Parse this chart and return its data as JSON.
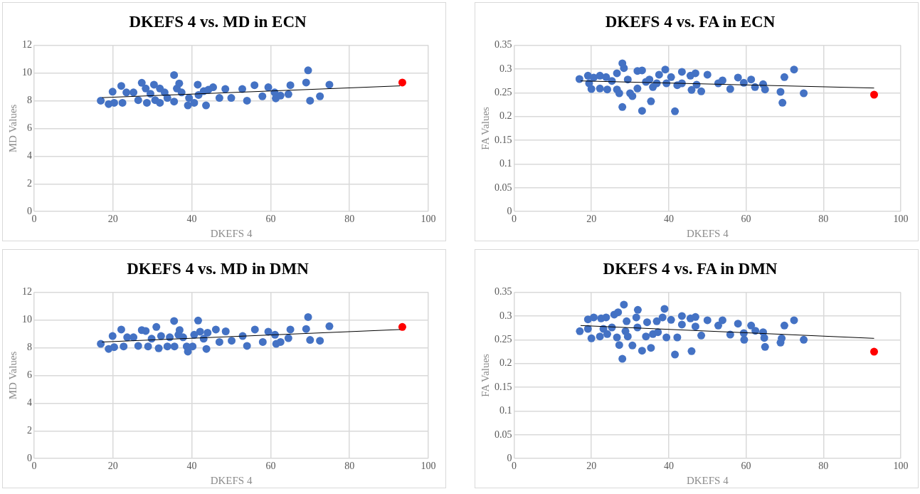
{
  "chart_data": [
    {
      "type": "scatter",
      "title": "DKEFS 4 vs. MD in ECN",
      "xlabel": "DKEFS 4",
      "ylabel": "MD Values",
      "xlim": [
        0,
        100
      ],
      "xticks": [
        0,
        20,
        40,
        60,
        80,
        100
      ],
      "ylim": [
        0,
        12
      ],
      "yticks": [
        0,
        2,
        4,
        6,
        8,
        10,
        12
      ],
      "grid": true,
      "legend": false,
      "marker": "circle",
      "series": [
        {
          "color": "#4472c4",
          "x": [
            16.9,
            18.9,
            20.3,
            19.9,
            22.1,
            22.4,
            23.4,
            25.2,
            26.4,
            27.3,
            28.3,
            28.6,
            29.5,
            30.4,
            30.7,
            31.9,
            31.9,
            33.1,
            33.8,
            35.5,
            35.5,
            36.2,
            36.8,
            37.4,
            39.0,
            39.3,
            40.6,
            41.5,
            41.7,
            43.6,
            43.0,
            44.2,
            45.4,
            47.0,
            48.5,
            50.0,
            52.8,
            54.0,
            55.9,
            57.9,
            59.4,
            61.0,
            61.3,
            62.5,
            64.5,
            65.0,
            69.0,
            69.5,
            70.0,
            72.5,
            74.9
          ],
          "values": [
            8.0,
            7.76,
            7.85,
            8.65,
            9.07,
            7.85,
            8.6,
            8.6,
            8.04,
            9.29,
            8.88,
            7.85,
            8.5,
            9.16,
            8.04,
            8.88,
            7.85,
            8.6,
            8.2,
            9.85,
            7.94,
            8.88,
            9.25,
            8.6,
            7.66,
            8.2,
            7.85,
            9.16,
            8.41,
            7.66,
            8.69,
            8.79,
            8.97,
            8.2,
            8.84,
            8.2,
            8.84,
            8.0,
            9.12,
            8.32,
            8.97,
            8.6,
            8.17,
            8.37,
            8.47,
            9.12,
            9.31,
            10.19,
            8.0,
            8.32,
            9.16
          ]
        },
        {
          "color": "#ff0000",
          "x": [
            93.4
          ],
          "values": [
            9.31
          ]
        },
        {
          "type": "line",
          "color": "#000000",
          "marker": "none",
          "x": [
            17.2,
            92.8
          ],
          "values": [
            8.22,
            9.07
          ]
        }
      ]
    },
    {
      "type": "scatter",
      "title": "DKEFS 4 vs. FA in ECN",
      "xlabel": "DKEFS 4",
      "ylabel": "FA Values",
      "xlim": [
        0,
        100
      ],
      "xticks": [
        0,
        20,
        40,
        60,
        80,
        100
      ],
      "ylim": [
        0,
        0.35
      ],
      "yticks": [
        0,
        0.05,
        0.1,
        0.15,
        0.2,
        0.25,
        0.3,
        0.35
      ],
      "grid": true,
      "legend": false,
      "marker": "circle",
      "series": [
        {
          "color": "#4472c4",
          "x": [
            16.9,
            19.1,
            19.4,
            20.0,
            20.6,
            22.2,
            22.2,
            23.8,
            24.1,
            25.3,
            26.6,
            26.6,
            27.2,
            28.0,
            28.4,
            28.0,
            29.4,
            30.0,
            30.6,
            31.9,
            33.1,
            31.9,
            33.1,
            34.1,
            35.0,
            35.4,
            35.9,
            36.9,
            37.5,
            39.1,
            39.4,
            40.6,
            41.6,
            42.2,
            43.4,
            43.4,
            45.6,
            45.9,
            46.9,
            47.2,
            48.4,
            50.0,
            52.8,
            53.9,
            55.9,
            57.9,
            59.4,
            61.3,
            62.3,
            64.4,
            64.9,
            68.9,
            69.4,
            69.9,
            72.4,
            74.9
          ],
          "values": [
            0.279,
            0.286,
            0.27,
            0.258,
            0.282,
            0.286,
            0.259,
            0.283,
            0.257,
            0.275,
            0.257,
            0.291,
            0.249,
            0.312,
            0.302,
            0.22,
            0.278,
            0.249,
            0.243,
            0.296,
            0.297,
            0.259,
            0.212,
            0.273,
            0.278,
            0.232,
            0.262,
            0.27,
            0.288,
            0.299,
            0.27,
            0.283,
            0.211,
            0.266,
            0.294,
            0.27,
            0.286,
            0.256,
            0.291,
            0.267,
            0.253,
            0.288,
            0.27,
            0.276,
            0.258,
            0.282,
            0.271,
            0.278,
            0.262,
            0.268,
            0.257,
            0.252,
            0.229,
            0.283,
            0.299,
            0.249
          ]
        },
        {
          "color": "#ff0000",
          "x": [
            93.1
          ],
          "values": [
            0.246
          ]
        },
        {
          "type": "line",
          "color": "#000000",
          "marker": "none",
          "x": [
            17.2,
            93.1
          ],
          "values": [
            0.275,
            0.26
          ]
        }
      ]
    },
    {
      "type": "scatter",
      "title": "DKEFS 4 vs. MD in DMN",
      "xlabel": "DKEFS 4",
      "ylabel": "MD Values",
      "xlim": [
        0,
        100
      ],
      "xticks": [
        0,
        20,
        40,
        60,
        80,
        100
      ],
      "ylim": [
        0,
        12
      ],
      "yticks": [
        0,
        2,
        4,
        6,
        8,
        10,
        12
      ],
      "grid": true,
      "legend": false,
      "marker": "circle",
      "series": [
        {
          "color": "#4472c4",
          "x": [
            16.9,
            18.9,
            19.9,
            20.3,
            22.1,
            22.7,
            23.6,
            25.2,
            26.4,
            27.3,
            28.3,
            28.9,
            29.8,
            31.0,
            31.6,
            32.2,
            33.8,
            34.4,
            35.5,
            35.6,
            36.6,
            36.9,
            37.8,
            38.7,
            39.0,
            40.2,
            40.6,
            41.6,
            42.1,
            43.0,
            43.7,
            44.0,
            46.1,
            47.0,
            48.6,
            50.1,
            52.9,
            54.0,
            56.0,
            58.0,
            59.4,
            61.1,
            61.4,
            62.5,
            64.5,
            65.0,
            69.0,
            69.5,
            70.0,
            72.5,
            74.9
          ],
          "values": [
            8.28,
            7.91,
            8.84,
            8.04,
            9.31,
            8.09,
            8.75,
            8.75,
            8.13,
            9.27,
            9.21,
            8.09,
            8.65,
            9.5,
            7.96,
            8.84,
            8.09,
            8.75,
            9.93,
            8.09,
            8.93,
            9.27,
            8.75,
            8.09,
            7.72,
            8.09,
            8.93,
            9.96,
            9.16,
            8.65,
            7.91,
            9.08,
            9.31,
            8.41,
            9.18,
            8.5,
            8.84,
            8.13,
            9.31,
            8.41,
            9.16,
            8.93,
            8.28,
            8.41,
            8.69,
            9.31,
            9.35,
            10.21,
            8.56,
            8.5,
            9.55
          ]
        },
        {
          "color": "#ff0000",
          "x": [
            93.4
          ],
          "values": [
            9.5
          ]
        },
        {
          "type": "line",
          "color": "#000000",
          "marker": "none",
          "x": [
            17.2,
            92.8
          ],
          "values": [
            8.41,
            9.31
          ]
        }
      ]
    },
    {
      "type": "scatter",
      "title": "DKEFS 4 vs. FA in DMN",
      "xlabel": "DKEFS 4",
      "ylabel": "FA Values",
      "xlim": [
        0,
        100
      ],
      "xticks": [
        0,
        20,
        40,
        60,
        80,
        100
      ],
      "ylim": [
        0,
        0.35
      ],
      "yticks": [
        0,
        0.05,
        0.1,
        0.15,
        0.2,
        0.25,
        0.3,
        0.35
      ],
      "grid": true,
      "legend": false,
      "marker": "circle",
      "series": [
        {
          "color": "#4472c4",
          "x": [
            17.0,
            19.1,
            19.1,
            20.0,
            20.6,
            22.2,
            22.5,
            23.1,
            23.8,
            24.1,
            25.3,
            25.9,
            26.6,
            26.9,
            27.2,
            28.0,
            28.4,
            28.8,
            29.4,
            29.1,
            30.6,
            31.6,
            32.0,
            31.9,
            33.1,
            34.1,
            34.4,
            35.4,
            35.9,
            36.9,
            37.2,
            38.4,
            38.9,
            39.4,
            40.6,
            41.6,
            42.2,
            43.4,
            43.4,
            45.6,
            45.9,
            46.9,
            46.9,
            48.4,
            50.0,
            52.8,
            53.9,
            55.9,
            57.9,
            59.5,
            59.4,
            61.3,
            62.4,
            64.4,
            64.9,
            64.7,
            68.9,
            69.2,
            69.9,
            72.4,
            74.9
          ],
          "values": [
            0.268,
            0.273,
            0.293,
            0.253,
            0.297,
            0.257,
            0.295,
            0.273,
            0.297,
            0.262,
            0.276,
            0.303,
            0.255,
            0.308,
            0.239,
            0.21,
            0.324,
            0.268,
            0.257,
            0.289,
            0.238,
            0.297,
            0.313,
            0.276,
            0.227,
            0.257,
            0.287,
            0.233,
            0.262,
            0.289,
            0.266,
            0.297,
            0.315,
            0.255,
            0.292,
            0.219,
            0.255,
            0.3,
            0.282,
            0.295,
            0.226,
            0.298,
            0.278,
            0.259,
            0.291,
            0.28,
            0.291,
            0.261,
            0.284,
            0.25,
            0.264,
            0.28,
            0.269,
            0.266,
            0.235,
            0.254,
            0.244,
            0.253,
            0.28,
            0.291,
            0.25
          ]
        },
        {
          "color": "#ff0000",
          "x": [
            93.1
          ],
          "values": [
            0.225
          ]
        },
        {
          "type": "line",
          "color": "#000000",
          "marker": "none",
          "x": [
            17.2,
            93.1
          ],
          "values": [
            0.28,
            0.253
          ]
        }
      ]
    }
  ]
}
